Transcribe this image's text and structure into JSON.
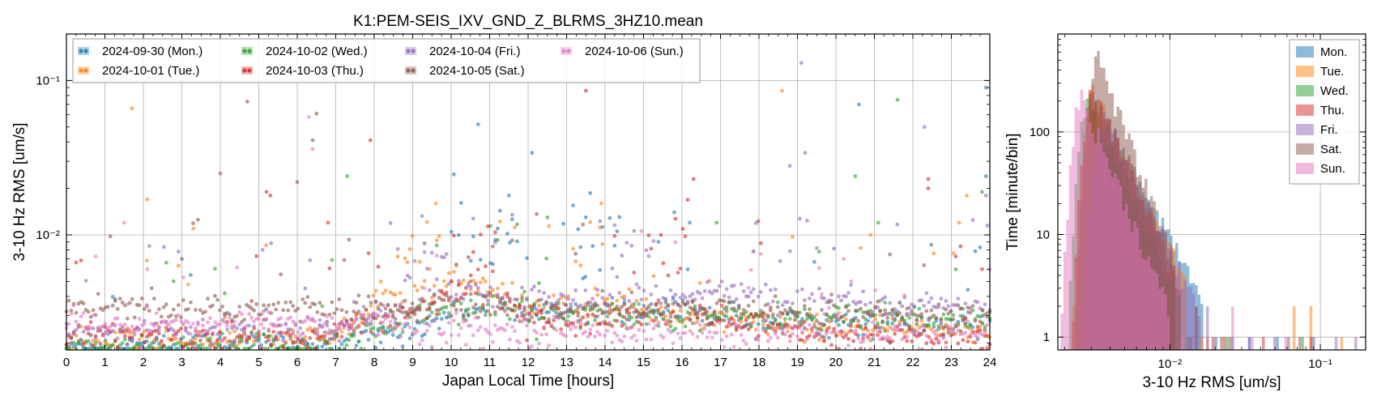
{
  "scatter": {
    "chart_data": {
      "type": "scatter",
      "title": "K1:PEM-SEIS_IXV_GND_Z_BLRMS_3HZ10.mean",
      "xlabel": "Japan Local Time [hours]",
      "ylabel": "3-10 Hz RMS [um/s]",
      "xlim": [
        0,
        24
      ],
      "ylim": [
        0.0018,
        0.2
      ],
      "yscale": "log",
      "grid": true,
      "legend_position": "top-left",
      "x_ticks": [
        "0",
        "1",
        "2",
        "3",
        "4",
        "5",
        "6",
        "7",
        "8",
        "9",
        "10",
        "11",
        "12",
        "13",
        "14",
        "15",
        "16",
        "17",
        "18",
        "19",
        "20",
        "21",
        "22",
        "23",
        "24"
      ],
      "y_ticks": [
        {
          "value": 0.01,
          "label": "10⁻²"
        },
        {
          "value": 0.1,
          "label": "10⁻¹"
        }
      ],
      "series": [
        {
          "name": "2024-09-30 (Mon.)",
          "color": "#1f77b4",
          "baseline": [
            0.0019,
            0.0019,
            0.0019,
            0.0019,
            0.002,
            0.002,
            0.002,
            0.002,
            0.0022,
            0.0025,
            0.003,
            0.0033,
            0.0031,
            0.0031,
            0.0032,
            0.0032,
            0.0032,
            0.0031,
            0.0028,
            0.0027,
            0.0027,
            0.0026,
            0.0026,
            0.0025,
            0.0025
          ],
          "active": [
            {
              "start": 10,
              "end": 12,
              "level": 0.0095
            },
            {
              "start": 13,
              "end": 14.5,
              "level": 0.0085
            }
          ],
          "outliers": [
            [
              10.7,
              0.052
            ],
            [
              12.1,
              0.034
            ],
            [
              13.5,
              0.013
            ],
            [
              15.8,
              0.014
            ],
            [
              16.2,
              0.012
            ],
            [
              20.6,
              0.07
            ],
            [
              23.9,
              0.09
            ],
            [
              11.5,
              0.018
            ],
            [
              23.9,
              0.024
            ]
          ]
        },
        {
          "name": "2024-10-01 (Tue.)",
          "color": "#ff7f0e",
          "baseline": [
            0.0021,
            0.0021,
            0.0021,
            0.0021,
            0.0021,
            0.0021,
            0.0021,
            0.0022,
            0.0035,
            0.0045,
            0.005,
            0.0048,
            0.0035,
            0.0034,
            0.0036,
            0.0033,
            0.0029,
            0.0028,
            0.0026,
            0.0025,
            0.0025,
            0.0025,
            0.0025,
            0.0024,
            0.0024
          ],
          "active": [
            {
              "start": 8.5,
              "end": 10,
              "level": 0.0075
            },
            {
              "start": 13,
              "end": 14,
              "level": 0.0085
            }
          ],
          "outliers": [
            [
              1.7,
              0.066
            ],
            [
              2.1,
              0.017
            ],
            [
              3.3,
              0.011
            ],
            [
              9.6,
              0.016
            ],
            [
              13.9,
              0.016
            ],
            [
              18.6,
              0.086
            ],
            [
              23.2,
              0.012
            ],
            [
              23.4,
              0.018
            ],
            [
              20.9,
              0.01
            ]
          ]
        },
        {
          "name": "2024-10-02 (Wed.)",
          "color": "#2ca02c",
          "baseline": [
            0.0019,
            0.0019,
            0.0019,
            0.0019,
            0.0019,
            0.0019,
            0.0019,
            0.0021,
            0.0024,
            0.003,
            0.0035,
            0.0033,
            0.003,
            0.003,
            0.003,
            0.003,
            0.003,
            0.003,
            0.003,
            0.0029,
            0.0029,
            0.0029,
            0.0029,
            0.0029,
            0.0029
          ],
          "active": [
            {
              "start": 11.8,
              "end": 12.6,
              "level": 0.004
            }
          ],
          "outliers": [
            [
              7.3,
              0.024
            ],
            [
              12.5,
              0.013
            ],
            [
              16.9,
              0.012
            ],
            [
              20.5,
              0.024
            ],
            [
              21.6,
              0.075
            ],
            [
              21.1,
              0.012
            ],
            [
              23.8,
              0.019
            ]
          ]
        },
        {
          "name": "2024-10-03 (Thu.)",
          "color": "#d62728",
          "baseline": [
            0.0022,
            0.0022,
            0.0022,
            0.0022,
            0.0022,
            0.0022,
            0.0022,
            0.0023,
            0.0026,
            0.0033,
            0.004,
            0.0038,
            0.003,
            0.0026,
            0.0028,
            0.003,
            0.0032,
            0.0029,
            0.0025,
            0.0024,
            0.0022,
            0.0022,
            0.0022,
            0.0022,
            0.0022
          ],
          "active": [
            {
              "start": 10,
              "end": 11.5,
              "level": 0.0065
            },
            {
              "start": 15,
              "end": 16.2,
              "level": 0.0075
            }
          ],
          "outliers": [
            [
              5.2,
              0.019
            ],
            [
              5.3,
              0.018
            ],
            [
              6.8,
              0.012
            ],
            [
              7.9,
              0.041
            ],
            [
              13.5,
              0.086
            ],
            [
              16.3,
              0.023
            ],
            [
              22.4,
              0.023
            ],
            [
              22.4,
              0.02
            ],
            [
              23.8,
              0.006
            ]
          ]
        },
        {
          "name": "2024-10-04 (Fri.)",
          "color": "#9467bd",
          "baseline": [
            0.0024,
            0.0024,
            0.0024,
            0.0024,
            0.0024,
            0.0024,
            0.0024,
            0.0025,
            0.003,
            0.0038,
            0.0042,
            0.004,
            0.0037,
            0.0038,
            0.004,
            0.0039,
            0.0042,
            0.0043,
            0.004,
            0.0038,
            0.0036,
            0.0035,
            0.0034,
            0.0034,
            0.0034
          ],
          "active": [
            {
              "start": 8.6,
              "end": 10,
              "level": 0.006
            },
            {
              "start": 14,
              "end": 15.5,
              "level": 0.0068
            }
          ],
          "outliers": [
            [
              19.1,
              0.13
            ],
            [
              19.2,
              0.034
            ],
            [
              22.3,
              0.05
            ],
            [
              5.1,
              0.008
            ],
            [
              18.8,
              0.028
            ],
            [
              23.9,
              0.018
            ]
          ]
        },
        {
          "name": "2024-10-05 (Sat.)",
          "color": "#8c564b",
          "baseline": [
            0.0034,
            0.0034,
            0.0033,
            0.0033,
            0.0033,
            0.0033,
            0.0033,
            0.0033,
            0.0033,
            0.0034,
            0.0034,
            0.0033,
            0.0033,
            0.0033,
            0.0033,
            0.0033,
            0.0033,
            0.0033,
            0.0032,
            0.0031,
            0.0031,
            0.003,
            0.003,
            0.003,
            0.003
          ],
          "active": [],
          "outliers": [
            [
              4.0,
              0.025
            ],
            [
              4.7,
              0.073
            ],
            [
              6.4,
              0.041
            ],
            [
              6.5,
              0.061
            ],
            [
              6.0,
              0.022
            ],
            [
              3.0,
              0.007
            ],
            [
              10.5,
              0.005
            ]
          ]
        },
        {
          "name": "2024-10-06 (Sun.)",
          "color": "#e377c2",
          "baseline": [
            0.0027,
            0.0027,
            0.0027,
            0.0027,
            0.0027,
            0.0027,
            0.0027,
            0.0027,
            0.0027,
            0.0025,
            0.0024,
            0.0024,
            0.0024,
            0.0024,
            0.0024,
            0.0024,
            0.0024,
            0.0023,
            0.0023,
            0.0023,
            0.0023,
            0.0023,
            0.0023,
            0.0023,
            0.0023
          ],
          "active": [],
          "outliers": [
            [
              6.3,
              0.058
            ],
            [
              6.4,
              0.036
            ],
            [
              2.1,
              0.006
            ],
            [
              9.3,
              0.0045
            ],
            [
              20.4,
              0.005
            ],
            [
              1.5,
              0.012
            ]
          ]
        }
      ]
    }
  },
  "histogram": {
    "chart_data": {
      "type": "histogram",
      "title": "",
      "xlabel": "3-10 Hz RMS [um/s]",
      "ylabel": "Time [minute/bin]",
      "xlim": [
        0.0018,
        0.2
      ],
      "ylim": [
        0.75,
        900
      ],
      "xscale": "log",
      "yscale": "log",
      "grid": true,
      "legend_position": "top-right",
      "x_ticks": [
        {
          "value": 0.01,
          "label": "10⁻²"
        },
        {
          "value": 0.1,
          "label": "10⁻¹"
        }
      ],
      "y_ticks": [
        {
          "value": 1,
          "label": "1"
        },
        {
          "value": 10,
          "label": "10"
        },
        {
          "value": 100,
          "label": "100"
        }
      ],
      "bins_log_range": [
        -2.745,
        -0.7
      ],
      "bin_count": 110,
      "series": [
        {
          "name": "Mon.",
          "color": "#1f77b4",
          "peak_center": 0.0032,
          "peak_height": 190,
          "tail_slope": 2.6,
          "tail_end": 0.017,
          "sparse": [
            [
              0.02,
              1
            ],
            [
              0.026,
              1
            ],
            [
              0.034,
              1
            ],
            [
              0.052,
              1
            ],
            [
              0.09,
              1
            ]
          ]
        },
        {
          "name": "Tue.",
          "color": "#ff7f0e",
          "peak_center": 0.0031,
          "peak_height": 240,
          "tail_slope": 3.0,
          "tail_end": 0.013,
          "sparse": [
            [
              0.016,
              1
            ],
            [
              0.018,
              1
            ],
            [
              0.066,
              2
            ],
            [
              0.085,
              2
            ],
            [
              0.14,
              1
            ]
          ]
        },
        {
          "name": "Wed.",
          "color": "#2ca02c",
          "peak_center": 0.0029,
          "peak_height": 200,
          "tail_slope": 3.2,
          "tail_end": 0.012,
          "sparse": [
            [
              0.013,
              1
            ],
            [
              0.024,
              1
            ],
            [
              0.075,
              1
            ]
          ]
        },
        {
          "name": "Thu.",
          "color": "#d62728",
          "peak_center": 0.0031,
          "peak_height": 250,
          "tail_slope": 3.3,
          "tail_end": 0.012,
          "sparse": [
            [
              0.014,
              1
            ],
            [
              0.019,
              1
            ],
            [
              0.023,
              1
            ],
            [
              0.041,
              1
            ],
            [
              0.086,
              1
            ]
          ]
        },
        {
          "name": "Fri.",
          "color": "#9467bd",
          "peak_center": 0.0036,
          "peak_height": 150,
          "tail_slope": 3.0,
          "tail_end": 0.016,
          "sparse": [
            [
              0.018,
              2
            ],
            [
              0.034,
              1
            ],
            [
              0.05,
              1
            ],
            [
              0.13,
              1
            ],
            [
              0.17,
              1
            ]
          ]
        },
        {
          "name": "Sat.",
          "color": "#8c564b",
          "peak_center": 0.0033,
          "peak_height": 550,
          "tail_slope": 4.0,
          "tail_end": 0.011,
          "sparse": [
            [
              0.015,
              2
            ],
            [
              0.022,
              1
            ],
            [
              0.025,
              1
            ],
            [
              0.061,
              1
            ],
            [
              0.073,
              1
            ]
          ]
        },
        {
          "name": "Sun.",
          "color": "#e377c2",
          "peak_center": 0.0026,
          "peak_height": 220,
          "tail_slope": 3.6,
          "tail_end": 0.01,
          "sparse": [
            [
              0.012,
              1
            ],
            [
              0.026,
              2
            ],
            [
              0.036,
              1
            ],
            [
              0.058,
              1
            ]
          ]
        }
      ]
    }
  }
}
